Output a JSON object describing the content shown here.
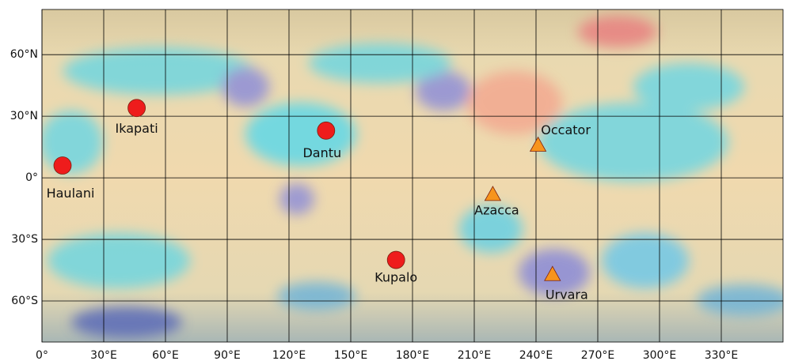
{
  "chart_data": {
    "type": "scatter",
    "xlim": [
      0,
      360
    ],
    "ylim": [
      -80,
      82
    ],
    "xticks": [
      {
        "value": 0,
        "label": "0°"
      },
      {
        "value": 30,
        "label": "30°E"
      },
      {
        "value": 60,
        "label": "60°E"
      },
      {
        "value": 90,
        "label": "90°E"
      },
      {
        "value": 120,
        "label": "120°E"
      },
      {
        "value": 150,
        "label": "150°E"
      },
      {
        "value": 180,
        "label": "180°E"
      },
      {
        "value": 210,
        "label": "210°E"
      },
      {
        "value": 240,
        "label": "240°E"
      },
      {
        "value": 270,
        "label": "270°E"
      },
      {
        "value": 300,
        "label": "300°E"
      },
      {
        "value": 330,
        "label": "330°E"
      }
    ],
    "yticks": [
      {
        "value": 60,
        "label": "60°N"
      },
      {
        "value": 30,
        "label": "30°N"
      },
      {
        "value": 0,
        "label": "0°"
      },
      {
        "value": -30,
        "label": "30°S"
      },
      {
        "value": -60,
        "label": "60°S"
      }
    ],
    "grid": true,
    "series": [
      {
        "marker": "circle",
        "color": "#ee1c1c",
        "labels": [
          "Haulani",
          "Ikapati",
          "Dantu",
          "Kupalo"
        ],
        "x": [
          10,
          46,
          138,
          172
        ],
        "y": [
          6,
          34,
          23,
          -40
        ]
      },
      {
        "marker": "triangle",
        "color": "#f7941d",
        "labels": [
          "Occator",
          "Azacca",
          "Urvara"
        ],
        "x": [
          241,
          219,
          248
        ],
        "y": [
          16,
          -8,
          -47
        ]
      }
    ]
  }
}
